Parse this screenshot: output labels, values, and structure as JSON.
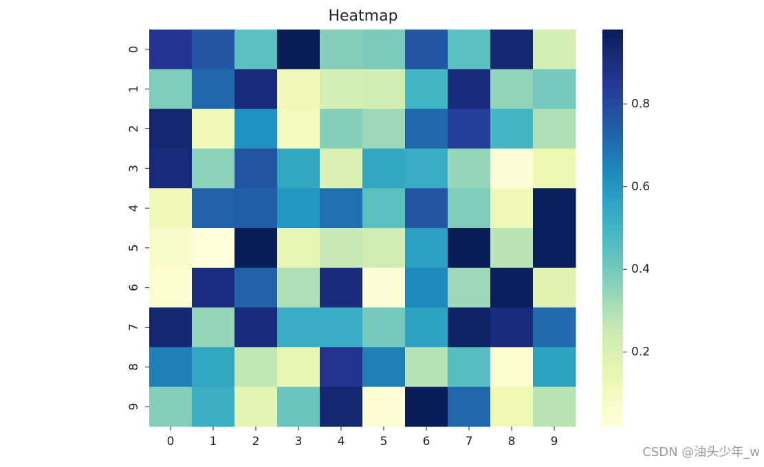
{
  "chart_data": {
    "type": "heatmap",
    "title": "Heatmap",
    "xlabel": "",
    "ylabel": "",
    "x_categories": [
      "0",
      "1",
      "2",
      "3",
      "4",
      "5",
      "6",
      "7",
      "8",
      "9"
    ],
    "y_categories": [
      "0",
      "1",
      "2",
      "3",
      "4",
      "5",
      "6",
      "7",
      "8",
      "9"
    ],
    "colormap": "YlGnBu",
    "vmin": 0.02,
    "vmax": 0.98,
    "colorbar_ticks": [
      0.2,
      0.4,
      0.6,
      0.8
    ],
    "colorbar_tick_labels": [
      "0.2",
      "0.4",
      "0.6",
      "0.8"
    ],
    "values": [
      [
        0.86,
        0.76,
        0.45,
        0.98,
        0.37,
        0.39,
        0.76,
        0.45,
        0.93,
        0.22
      ],
      [
        0.38,
        0.72,
        0.91,
        0.12,
        0.22,
        0.23,
        0.5,
        0.91,
        0.35,
        0.4
      ],
      [
        0.93,
        0.12,
        0.62,
        0.1,
        0.37,
        0.33,
        0.72,
        0.83,
        0.5,
        0.3
      ],
      [
        0.91,
        0.36,
        0.77,
        0.55,
        0.2,
        0.55,
        0.53,
        0.34,
        0.03,
        0.14
      ],
      [
        0.12,
        0.73,
        0.74,
        0.6,
        0.7,
        0.45,
        0.76,
        0.38,
        0.12,
        0.97
      ],
      [
        0.07,
        0.02,
        0.98,
        0.16,
        0.26,
        0.23,
        0.57,
        0.98,
        0.28,
        0.97
      ],
      [
        0.04,
        0.9,
        0.73,
        0.3,
        0.91,
        0.03,
        0.64,
        0.33,
        0.97,
        0.18
      ],
      [
        0.93,
        0.34,
        0.91,
        0.53,
        0.53,
        0.4,
        0.56,
        0.95,
        0.91,
        0.71
      ],
      [
        0.66,
        0.55,
        0.27,
        0.16,
        0.87,
        0.66,
        0.29,
        0.46,
        0.04,
        0.56
      ],
      [
        0.37,
        0.52,
        0.17,
        0.42,
        0.93,
        0.03,
        0.98,
        0.72,
        0.13,
        0.28
      ]
    ],
    "grid": false,
    "colorbar": "right"
  },
  "watermark": "CSDN @油头少年_w"
}
